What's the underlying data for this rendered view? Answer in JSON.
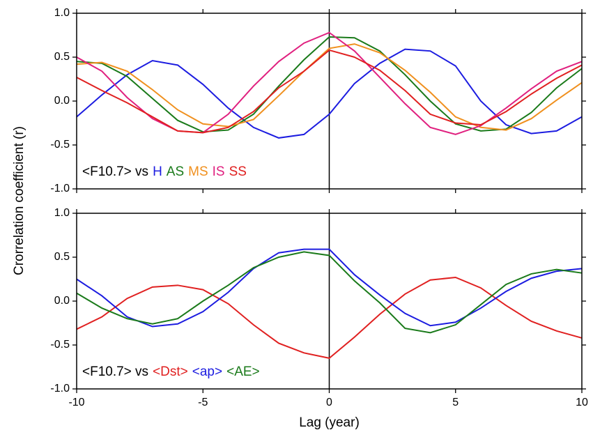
{
  "chart_data": [
    {
      "type": "line",
      "ylabel": "Crorrelation coefficient (r)",
      "legend_title": "<F10.7> vs",
      "x": [
        -10,
        -9,
        -8,
        -7,
        -6,
        -5,
        -4,
        -3,
        -2,
        -1,
        0,
        1,
        2,
        3,
        4,
        5,
        6,
        7,
        8,
        9,
        10
      ],
      "xlim": [
        -10,
        10
      ],
      "xticks": [
        -10,
        -5,
        0,
        5,
        10
      ],
      "vline": 0,
      "ylim": [
        -1,
        1
      ],
      "yticks": [
        {
          "value": -1,
          "label": "-1.0"
        },
        {
          "value": -0.5,
          "label": "-0.5"
        },
        {
          "value": 0,
          "label": "0.0"
        },
        {
          "value": 0.5,
          "label": "0.5"
        },
        {
          "value": 1,
          "label": "1.0"
        }
      ],
      "series": [
        {
          "name": "H",
          "color": "#1c1ce0",
          "values": [
            -0.18,
            0.07,
            0.3,
            0.46,
            0.41,
            0.19,
            -0.08,
            -0.3,
            -0.42,
            -0.38,
            -0.15,
            0.2,
            0.43,
            0.59,
            0.57,
            0.4,
            0.0,
            -0.27,
            -0.37,
            -0.34,
            -0.18
          ]
        },
        {
          "name": "AS",
          "color": "#1a7a1a",
          "values": [
            0.45,
            0.43,
            0.28,
            0.03,
            -0.22,
            -0.35,
            -0.33,
            -0.15,
            0.17,
            0.47,
            0.73,
            0.72,
            0.57,
            0.3,
            0.0,
            -0.26,
            -0.34,
            -0.32,
            -0.13,
            0.15,
            0.37
          ]
        },
        {
          "name": "MS",
          "color": "#f0901e",
          "values": [
            0.42,
            0.44,
            0.34,
            0.13,
            -0.1,
            -0.26,
            -0.29,
            -0.21,
            0.06,
            0.34,
            0.6,
            0.65,
            0.55,
            0.35,
            0.1,
            -0.18,
            -0.3,
            -0.33,
            -0.2,
            0.01,
            0.21
          ]
        },
        {
          "name": "IS",
          "color": "#e0207f",
          "values": [
            0.5,
            0.34,
            0.04,
            -0.2,
            -0.34,
            -0.36,
            -0.15,
            0.17,
            0.45,
            0.66,
            0.78,
            0.57,
            0.27,
            -0.03,
            -0.3,
            -0.38,
            -0.28,
            -0.08,
            0.14,
            0.34,
            0.45
          ]
        },
        {
          "name": "SS",
          "color": "#e02020",
          "values": [
            0.27,
            0.12,
            -0.02,
            -0.18,
            -0.34,
            -0.36,
            -0.3,
            -0.12,
            0.15,
            0.34,
            0.58,
            0.5,
            0.35,
            0.12,
            -0.15,
            -0.25,
            -0.27,
            -0.12,
            0.08,
            0.26,
            0.41
          ]
        }
      ]
    },
    {
      "type": "line",
      "xlabel": "Lag (year)",
      "legend_title": "<F10.7> vs",
      "x": [
        -10,
        -9,
        -8,
        -7,
        -6,
        -5,
        -4,
        -3,
        -2,
        -1,
        0,
        1,
        2,
        3,
        4,
        5,
        6,
        7,
        8,
        9,
        10
      ],
      "xlim": [
        -10,
        10
      ],
      "xticks": [
        -10,
        -5,
        0,
        5,
        10
      ],
      "vline": 0,
      "ylim": [
        -1,
        1
      ],
      "yticks": [
        {
          "value": -1,
          "label": "-1.0"
        },
        {
          "value": -0.5,
          "label": "-0.5"
        },
        {
          "value": 0,
          "label": "0.0"
        },
        {
          "value": 0.5,
          "label": "0.5"
        },
        {
          "value": 1,
          "label": "1.0"
        }
      ],
      "series": [
        {
          "name": "<Dst>",
          "color": "#e02020",
          "values": [
            -0.32,
            -0.18,
            0.03,
            0.16,
            0.18,
            0.13,
            -0.03,
            -0.27,
            -0.48,
            -0.59,
            -0.65,
            -0.41,
            -0.15,
            0.08,
            0.24,
            0.27,
            0.15,
            -0.05,
            -0.23,
            -0.34,
            -0.42
          ]
        },
        {
          "name": "<ap>",
          "color": "#1c1ce0",
          "values": [
            0.25,
            0.06,
            -0.18,
            -0.29,
            -0.26,
            -0.12,
            0.1,
            0.37,
            0.55,
            0.59,
            0.59,
            0.3,
            0.07,
            -0.14,
            -0.28,
            -0.24,
            -0.08,
            0.11,
            0.26,
            0.34,
            0.37
          ]
        },
        {
          "name": "<AE>",
          "color": "#1a7a1a",
          "values": [
            0.09,
            -0.08,
            -0.2,
            -0.26,
            -0.2,
            0.0,
            0.18,
            0.38,
            0.5,
            0.56,
            0.52,
            0.23,
            -0.02,
            -0.31,
            -0.36,
            -0.27,
            -0.04,
            0.19,
            0.31,
            0.36,
            0.32
          ]
        }
      ]
    }
  ]
}
